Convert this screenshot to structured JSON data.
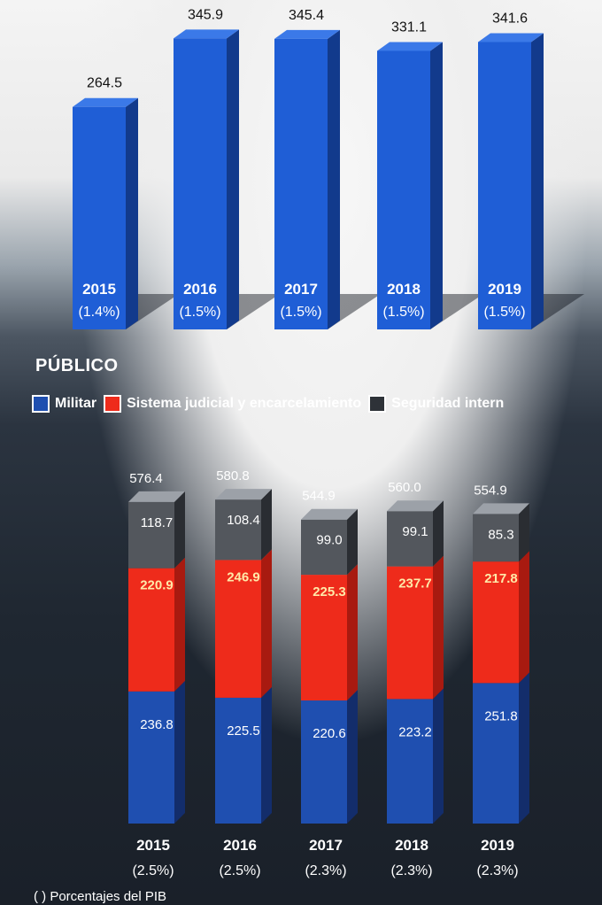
{
  "chart_data": [
    {
      "type": "bar",
      "categories": [
        "2015",
        "2016",
        "2017",
        "2018",
        "2019"
      ],
      "values": [
        264.5,
        345.9,
        345.4,
        331.1,
        341.6
      ],
      "pct_labels": [
        "(1.4%)",
        "(1.5%)",
        "(1.5%)",
        "(1.5%)",
        "(1.5%)"
      ],
      "title": "",
      "colors": {
        "bar": "#1f5ed6"
      }
    },
    {
      "type": "bar",
      "stacked": true,
      "title": "PÚBLICO",
      "categories": [
        "2015",
        "2016",
        "2017",
        "2018",
        "2019"
      ],
      "totals": [
        576.4,
        580.8,
        544.9,
        560.0,
        554.9
      ],
      "totals_labels": [
        "576.4",
        "580.8",
        "544.9",
        "560.0",
        "554.9"
      ],
      "series": [
        {
          "name": "Militar",
          "values": [
            236.8,
            225.5,
            220.6,
            223.2,
            251.8
          ],
          "color": "#1f4fb0"
        },
        {
          "name": "Sistema judicial y encarcelamiento",
          "values": [
            220.9,
            246.9,
            225.3,
            237.7,
            217.8
          ],
          "color": "#ee2b1b"
        },
        {
          "name": "Seguridad intern",
          "values": [
            118.7,
            108.4,
            99.0,
            99.1,
            85.3
          ],
          "color": "#4b4f55"
        }
      ],
      "pct_labels": [
        "(2.5%)",
        "(2.5%)",
        "(2.3%)",
        "(2.3%)",
        "(2.3%)"
      ],
      "legend": "top-left"
    }
  ],
  "footnote": "( ) Porcentajes del PIB"
}
